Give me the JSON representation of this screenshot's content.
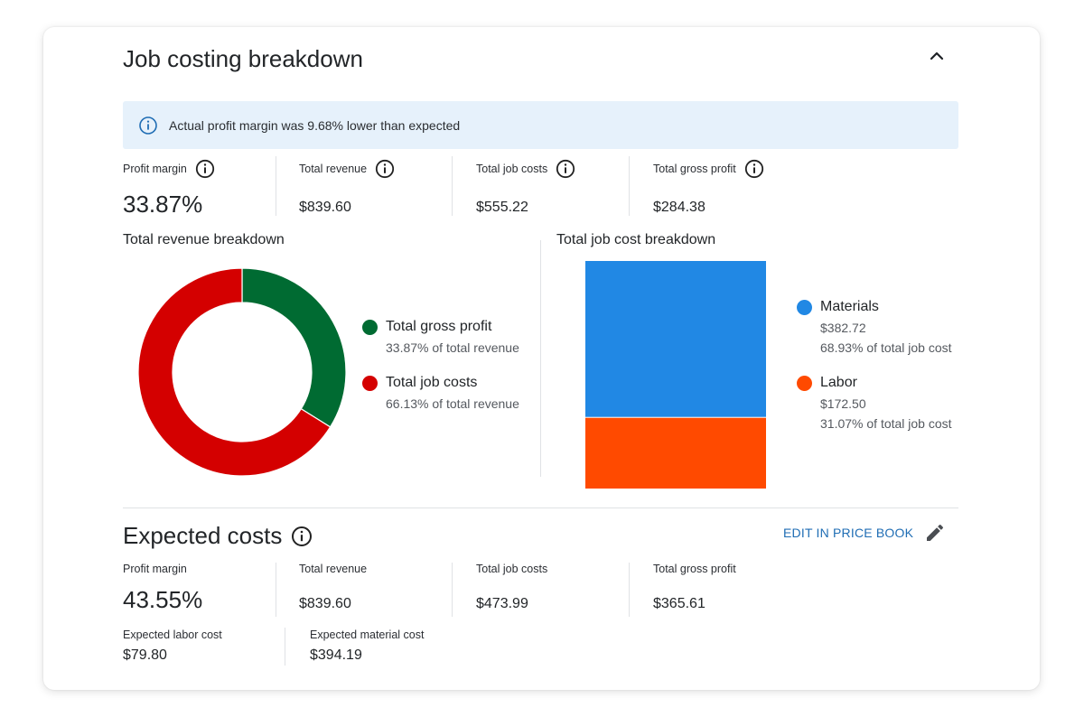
{
  "card": {
    "title": "Job costing breakdown",
    "banner_text": "Actual profit margin was 9.68% lower than expected"
  },
  "actual": {
    "stats": [
      {
        "label": "Profit margin",
        "value": "33.87%"
      },
      {
        "label": "Total revenue",
        "value": "$839.60"
      },
      {
        "label": "Total job costs",
        "value": "$555.22"
      },
      {
        "label": "Total gross profit",
        "value": "$284.38"
      }
    ]
  },
  "revenue_breakdown": {
    "title": "Total revenue breakdown",
    "items": [
      {
        "name": "Total gross profit",
        "sub": "33.87% of total revenue",
        "color": "#006b32"
      },
      {
        "name": "Total job costs",
        "sub": "66.13% of total revenue",
        "color": "#d40000"
      }
    ]
  },
  "cost_breakdown": {
    "title": "Total job cost breakdown",
    "items": [
      {
        "name": "Materials",
        "amount": "$382.72",
        "sub": "68.93% of total job cost",
        "color": "#2188e4"
      },
      {
        "name": "Labor",
        "amount": "$172.50",
        "sub": "31.07% of total job cost",
        "color": "#ff4a00"
      }
    ]
  },
  "chart_data": [
    {
      "type": "pie",
      "title": "Total revenue breakdown",
      "categories": [
        "Total gross profit",
        "Total job costs"
      ],
      "values": [
        33.87,
        66.13
      ],
      "colors": [
        "#006b32",
        "#d40000"
      ],
      "legend": "right"
    },
    {
      "type": "bar",
      "title": "Total job cost breakdown",
      "categories": [
        "Materials",
        "Labor"
      ],
      "values": [
        382.72,
        172.5
      ],
      "colors": [
        "#2188e4",
        "#ff4a00"
      ],
      "stacked": true,
      "legend": "right"
    }
  ],
  "expected": {
    "title": "Expected costs",
    "edit_label": "EDIT IN PRICE BOOK",
    "stats": [
      {
        "label": "Profit margin",
        "value": "43.55%"
      },
      {
        "label": "Total revenue",
        "value": "$839.60"
      },
      {
        "label": "Total job costs",
        "value": "$473.99"
      },
      {
        "label": "Total gross profit",
        "value": "$365.61"
      }
    ],
    "details": [
      {
        "label": "Expected labor cost",
        "value": "$79.80"
      },
      {
        "label": "Expected material cost",
        "value": "$394.19"
      }
    ]
  },
  "icons": {
    "info": "info-icon",
    "collapse": "chevron-up-icon",
    "edit": "pencil-icon"
  },
  "colors": {
    "banner_bg": "#e6f1fb",
    "accent": "#1f6db4"
  }
}
